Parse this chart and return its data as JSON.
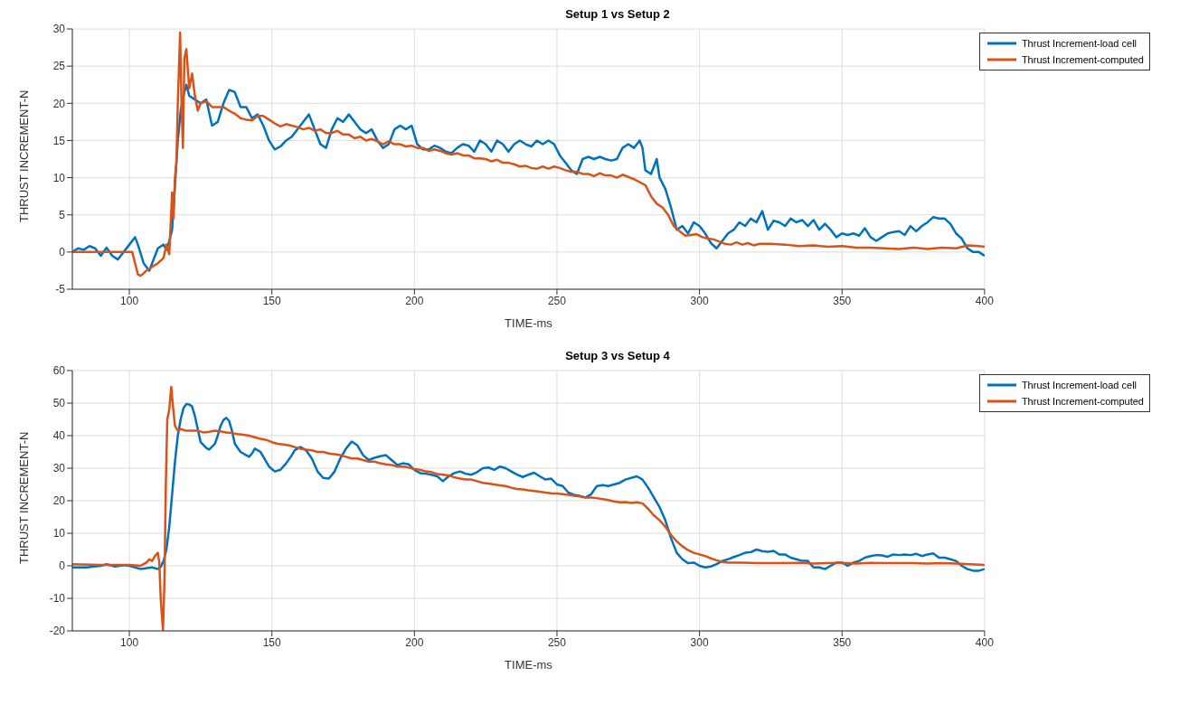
{
  "chart_data": [
    {
      "type": "line",
      "title": "Setup 1 vs Setup 2",
      "xlabel": "TIME-ms",
      "ylabel": "THRUST INCREMENT-N",
      "xlim": [
        80,
        400
      ],
      "xticks": [
        100,
        150,
        200,
        250,
        300,
        350,
        400
      ],
      "ylim": [
        -5,
        30
      ],
      "yticks": [
        -5,
        0,
        5,
        10,
        15,
        20,
        25,
        30
      ],
      "grid": true,
      "legend": "top right",
      "series": [
        {
          "name": "Thrust Increment-load cell",
          "color": "#0072bd",
          "x": [
            80,
            82,
            84,
            86,
            88,
            90,
            92,
            94,
            96,
            98,
            100,
            102,
            103,
            105,
            107,
            108,
            110,
            112,
            113,
            114,
            115,
            116,
            117,
            118,
            119,
            120,
            121,
            123,
            125,
            127,
            129,
            131,
            133,
            135,
            137,
            139,
            141,
            143,
            145,
            147,
            149,
            151,
            153,
            155,
            157,
            159,
            161,
            163,
            165,
            167,
            169,
            171,
            173,
            175,
            177,
            179,
            181,
            183,
            185,
            187,
            189,
            191,
            193,
            195,
            197,
            199,
            201,
            203,
            205,
            207,
            209,
            211,
            213,
            215,
            217,
            219,
            221,
            223,
            225,
            227,
            229,
            231,
            233,
            235,
            237,
            239,
            241,
            243,
            245,
            247,
            249,
            251,
            253,
            255,
            257,
            259,
            261,
            263,
            265,
            267,
            269,
            271,
            273,
            275,
            277,
            279,
            280,
            281,
            283,
            285,
            286,
            288,
            290,
            292,
            294,
            296,
            298,
            300,
            302,
            304,
            306,
            308,
            310,
            312,
            314,
            316,
            318,
            320,
            322,
            324,
            326,
            328,
            330,
            332,
            334,
            336,
            338,
            340,
            342,
            344,
            346,
            348,
            350,
            352,
            354,
            356,
            358,
            360,
            362,
            364,
            366,
            368,
            370,
            372,
            374,
            376,
            378,
            380,
            382,
            384,
            386,
            388,
            390,
            392,
            394,
            396,
            398,
            400
          ],
          "values": [
            0,
            0.5,
            0.3,
            0.8,
            0.5,
            -0.5,
            0.6,
            -0.5,
            -1,
            0,
            1,
            2,
            1,
            -1.5,
            -2.5,
            -1.5,
            0.5,
            1,
            0.3,
            1.5,
            3,
            9,
            15,
            19,
            21,
            22.5,
            21,
            20.5,
            20,
            20.5,
            17,
            17.5,
            20,
            21.8,
            21.5,
            19.5,
            19.5,
            18,
            18.5,
            17,
            15,
            13.8,
            14.2,
            15,
            15.5,
            16.5,
            17.5,
            18.5,
            16.5,
            14.5,
            14,
            16.5,
            18,
            17.5,
            18.5,
            17.5,
            16.5,
            16,
            16.5,
            15,
            14,
            14.5,
            16.5,
            17,
            16.5,
            17,
            14.5,
            13.8,
            13.8,
            14.3,
            14,
            13.5,
            13.3,
            14,
            14.5,
            14.3,
            13.5,
            15,
            14.5,
            13.5,
            15,
            14.5,
            13.5,
            14.5,
            15,
            14.5,
            14.2,
            15,
            14.5,
            15,
            14.5,
            13,
            12,
            11,
            10.5,
            12.5,
            12.8,
            12.5,
            12.8,
            12.5,
            12.3,
            12.5,
            14,
            14.5,
            14,
            15,
            14,
            11,
            10.5,
            12.5,
            10,
            8.5,
            6,
            3,
            3.5,
            2.5,
            4,
            3.5,
            2.5,
            1.2,
            0.5,
            1.5,
            2.5,
            3,
            4,
            3.5,
            4.5,
            4,
            5.5,
            3,
            4.2,
            4,
            3.5,
            4.5,
            4,
            4.3,
            3.5,
            4.3,
            3,
            3.8,
            3,
            2,
            2.5,
            2.3,
            2.5,
            2.2,
            3.2,
            2,
            1.5,
            2,
            2.5,
            2.7,
            2.8,
            2.3,
            3.5,
            2.8,
            3.5,
            4,
            4.7,
            4.5,
            4.5,
            3.8,
            2.5,
            1.8,
            0.5,
            0,
            0,
            -0.5
          ]
        },
        {
          "name": "Thrust Increment-computed",
          "color": "#d95319",
          "x": [
            80,
            100,
            101,
            102,
            103,
            104,
            106,
            108,
            110,
            112,
            113,
            114,
            115,
            115.5,
            116,
            116.5,
            117,
            117.8,
            118.3,
            118.8,
            119.3,
            120,
            121,
            122,
            123,
            124,
            125,
            127,
            129,
            131,
            133,
            135,
            137,
            139,
            141,
            143,
            145,
            147,
            149,
            151,
            153,
            155,
            157,
            159,
            161,
            163,
            165,
            167,
            169,
            171,
            173,
            175,
            177,
            179,
            181,
            183,
            185,
            187,
            189,
            191,
            193,
            195,
            197,
            199,
            201,
            203,
            205,
            207,
            209,
            211,
            213,
            215,
            217,
            219,
            221,
            223,
            225,
            227,
            229,
            231,
            233,
            235,
            237,
            239,
            241,
            243,
            245,
            247,
            249,
            251,
            253,
            255,
            257,
            259,
            261,
            263,
            265,
            267,
            269,
            271,
            273,
            275,
            277,
            279,
            281,
            283,
            285,
            287,
            289,
            291,
            293,
            295,
            297,
            299,
            301,
            303,
            305,
            307,
            309,
            311,
            313,
            315,
            317,
            319,
            321,
            325,
            330,
            335,
            340,
            345,
            350,
            355,
            360,
            365,
            370,
            375,
            380,
            385,
            390,
            394,
            398,
            400
          ],
          "values": [
            0,
            0,
            0,
            -1.5,
            -3,
            -3.2,
            -2.5,
            -2,
            -1.5,
            -0.8,
            1,
            -0.3,
            8,
            4.5,
            10,
            12,
            20,
            29.5,
            20,
            14,
            26,
            27.3,
            22,
            24,
            21,
            19,
            20,
            20.3,
            19.5,
            19.5,
            19.5,
            19,
            18.6,
            18,
            17.8,
            17.7,
            18.3,
            18.3,
            17.8,
            17.3,
            16.9,
            17.2,
            17,
            16.8,
            16.5,
            16.7,
            16.3,
            16.5,
            16,
            16,
            16.3,
            15.8,
            15.8,
            15.3,
            15.5,
            15,
            15.2,
            14.9,
            14.5,
            14.9,
            14.5,
            14.5,
            14.2,
            14.3,
            14,
            14,
            13.6,
            13.8,
            13.6,
            13.3,
            13.1,
            13.3,
            13,
            13,
            12.6,
            12.6,
            12.5,
            12.2,
            12.4,
            12,
            12,
            11.8,
            11.5,
            11.6,
            11.3,
            11.2,
            11.5,
            11.2,
            11.5,
            11.3,
            11,
            10.8,
            10.8,
            10.5,
            10.5,
            10.2,
            10.6,
            10.3,
            10.3,
            10,
            10.4,
            10.1,
            9.8,
            9.4,
            9,
            7.5,
            6.5,
            6,
            5,
            3.5,
            2.8,
            2.2,
            2.3,
            2.4,
            2,
            1.8,
            1.7,
            1.4,
            1.1,
            1,
            1.3,
            1,
            1.2,
            0.9,
            1.1,
            1.1,
            1,
            0.8,
            0.9,
            0.7,
            0.8,
            0.6,
            0.6,
            0.5,
            0.4,
            0.6,
            0.4,
            0.6,
            0.5,
            0.9,
            0.8,
            0.7
          ]
        }
      ]
    },
    {
      "type": "line",
      "title": "Setup 3 vs Setup 4",
      "xlabel": "TIME-ms",
      "ylabel": "THRUST INCREMENT-N",
      "xlim": [
        80,
        400
      ],
      "xticks": [
        100,
        150,
        200,
        250,
        300,
        350,
        400
      ],
      "ylim": [
        -20,
        60
      ],
      "yticks": [
        -20,
        -10,
        0,
        10,
        20,
        30,
        40,
        50,
        60
      ],
      "grid": true,
      "legend": "top right",
      "series": [
        {
          "name": "Thrust Increment-load cell",
          "color": "#0072bd",
          "x": [
            80,
            85,
            90,
            92,
            95,
            98,
            100,
            104,
            108,
            110,
            111,
            112,
            113,
            114,
            115,
            116,
            117,
            118,
            119,
            120,
            121,
            122,
            123,
            124,
            125,
            127,
            128,
            130,
            131,
            132,
            133,
            134,
            135,
            136,
            137,
            139,
            141,
            142,
            143,
            144,
            145,
            146,
            147,
            149,
            151,
            153,
            155,
            157,
            158,
            160,
            162,
            164,
            166,
            168,
            170,
            172,
            174,
            176,
            178,
            180,
            182,
            184,
            186,
            188,
            190,
            192,
            194,
            196,
            198,
            200,
            202,
            204,
            206,
            208,
            210,
            212,
            214,
            216,
            218,
            220,
            222,
            224,
            226,
            228,
            230,
            232,
            234,
            236,
            238,
            240,
            242,
            244,
            246,
            248,
            250,
            252,
            254,
            256,
            258,
            260,
            262,
            264,
            266,
            268,
            270,
            272,
            274,
            276,
            278,
            280,
            282,
            284,
            286,
            288,
            290,
            292,
            294,
            296,
            298,
            300,
            302,
            304,
            306,
            308,
            310,
            312,
            314,
            316,
            318,
            320,
            322,
            324,
            326,
            328,
            330,
            332,
            334,
            336,
            338,
            340,
            342,
            344,
            346,
            348,
            350,
            352,
            354,
            356,
            358,
            360,
            362,
            364,
            366,
            368,
            370,
            372,
            374,
            376,
            378,
            380,
            382,
            384,
            386,
            388,
            390,
            392,
            394,
            396,
            398,
            400
          ],
          "values": [
            -0.5,
            -0.5,
            0,
            0.5,
            -0.2,
            0.2,
            0,
            -1,
            -0.5,
            -1,
            -0.3,
            1.5,
            5,
            12,
            22,
            32,
            40,
            45,
            48.5,
            49.7,
            49.6,
            49,
            46,
            42,
            38,
            36.2,
            35.7,
            37.5,
            40,
            43,
            44.8,
            45.5,
            44.5,
            41.5,
            37.5,
            35,
            34,
            33.5,
            34.5,
            36,
            35.5,
            35,
            33.5,
            30.5,
            29,
            29.5,
            31.5,
            34,
            35.5,
            36.5,
            35.5,
            33,
            29,
            27,
            26.8,
            29,
            33,
            36,
            38.2,
            37,
            34,
            32.5,
            33.2,
            33.7,
            34,
            32.5,
            31,
            31.5,
            31.2,
            29.5,
            28.5,
            28.3,
            28,
            27.5,
            26,
            27.5,
            28.5,
            29,
            28.3,
            28,
            28.8,
            30,
            30.2,
            29.5,
            30.5,
            30,
            29,
            28,
            27.3,
            28,
            28.6,
            27.5,
            26.5,
            26.8,
            25,
            24.5,
            22.5,
            21.8,
            21.5,
            21,
            22,
            24.5,
            24.8,
            24.5,
            25,
            25.5,
            26.5,
            27,
            27.5,
            26.5,
            24,
            21,
            18,
            14,
            8.5,
            4,
            2,
            0.8,
            1,
            0,
            -0.5,
            -0.2,
            0.5,
            1.5,
            2,
            2.7,
            3.3,
            4,
            4.2,
            5,
            4.5,
            4.3,
            4.6,
            3.5,
            3.5,
            2.5,
            2,
            1.5,
            1.5,
            -0.5,
            -0.5,
            -1,
            0,
            1,
            1,
            0,
            1,
            1.5,
            2.5,
            3,
            3.3,
            3.2,
            2.8,
            3.5,
            3.3,
            3.5,
            3.3,
            3.7,
            3,
            3.5,
            3.8,
            2.5,
            2.5,
            2,
            1.5,
            0,
            -1,
            -1.5,
            -1.5,
            -1
          ]
        },
        {
          "name": "Thrust Increment-computed",
          "color": "#d95319",
          "x": [
            80,
            90,
            100,
            104,
            105,
            106,
            107,
            108,
            109,
            110,
            110.5,
            111,
            111.8,
            112.3,
            112.8,
            113.3,
            114,
            114.7,
            115.3,
            116,
            117,
            118,
            120,
            122,
            124,
            126,
            128,
            130,
            132,
            134,
            136,
            138,
            140,
            142,
            144,
            146,
            148,
            150,
            152,
            154,
            156,
            158,
            160,
            162,
            164,
            166,
            168,
            170,
            172,
            174,
            176,
            178,
            180,
            182,
            184,
            186,
            188,
            190,
            192,
            194,
            196,
            198,
            200,
            202,
            204,
            206,
            208,
            210,
            212,
            214,
            216,
            218,
            220,
            222,
            224,
            226,
            228,
            230,
            232,
            234,
            236,
            238,
            240,
            242,
            244,
            246,
            248,
            250,
            252,
            254,
            256,
            258,
            260,
            262,
            264,
            266,
            268,
            270,
            272,
            274,
            276,
            278,
            280,
            282,
            284,
            286,
            288,
            290,
            292,
            294,
            296,
            298,
            300,
            302,
            304,
            306,
            308,
            310,
            315,
            320,
            325,
            330,
            335,
            340,
            345,
            350,
            355,
            360,
            365,
            370,
            375,
            380,
            385,
            390,
            395,
            400
          ],
          "values": [
            0.5,
            0.3,
            0.3,
            0,
            0.5,
            1,
            2,
            1.5,
            3,
            4,
            1,
            -10,
            -20,
            -5,
            25,
            45,
            48,
            55,
            49,
            43,
            41.5,
            42,
            41.5,
            41.5,
            41.5,
            41,
            41.2,
            41.5,
            41.3,
            41,
            40.8,
            40.5,
            40.3,
            40,
            39.5,
            39,
            38.7,
            38,
            37.5,
            37.3,
            37,
            36.5,
            36,
            35.7,
            35.5,
            35,
            35,
            34.5,
            34.3,
            34,
            33.5,
            33,
            33,
            32.5,
            32,
            32,
            31.5,
            31.2,
            31,
            30.5,
            30.5,
            30.2,
            29.7,
            29.5,
            29,
            28.8,
            28.2,
            28,
            27.8,
            27.2,
            26.8,
            26.5,
            26.5,
            26,
            25.5,
            25.3,
            25,
            24.7,
            24.5,
            24,
            23.6,
            23.5,
            23.2,
            23,
            22.8,
            22.5,
            22.3,
            22.2,
            22,
            21.8,
            21.5,
            21.3,
            21,
            21,
            20.8,
            20.5,
            20.2,
            19.8,
            19.5,
            19.6,
            19.3,
            19.5,
            19.2,
            17.5,
            15.5,
            14,
            12,
            9.5,
            7.5,
            6,
            4.8,
            4,
            3.5,
            3,
            2.3,
            1.7,
            1.2,
            1,
            1,
            0.8,
            0.8,
            0.8,
            0.9,
            0.7,
            0.8,
            0.9,
            0.7,
            0.9,
            0.8,
            0.8,
            0.8,
            0.7,
            0.8,
            0.7,
            0.5,
            0.3
          ]
        }
      ]
    }
  ]
}
